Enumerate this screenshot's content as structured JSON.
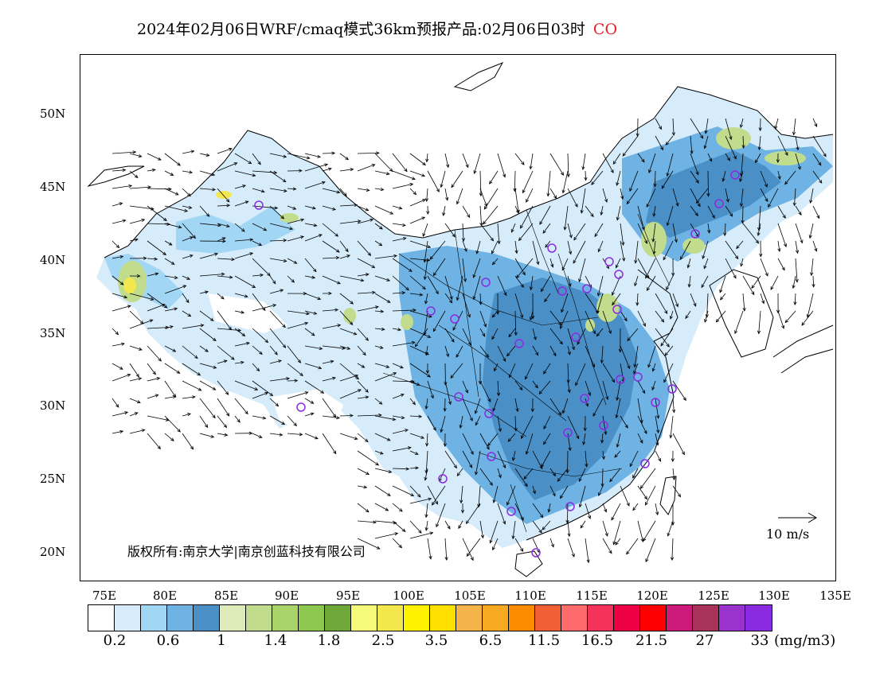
{
  "title": {
    "main": "2024年02月06日WRF/cmaq模式36km预报产品:02月06日03时",
    "species": "CO",
    "species_color": "#e8202a"
  },
  "axes": {
    "lat_labels": [
      "50N",
      "45N",
      "40N",
      "35N",
      "30N",
      "25N",
      "20N"
    ],
    "lon_labels": [
      "75E",
      "80E",
      "85E",
      "90E",
      "95E",
      "100E",
      "105E",
      "110E",
      "115E",
      "120E",
      "125E",
      "130E",
      "135E"
    ]
  },
  "copyright": "版权所有:南京大学|南京创蓝科技有限公司",
  "wind_reference": "10 m/s",
  "colorbar": {
    "colors": [
      "#ffffff",
      "#d6ecfa",
      "#a2d6f5",
      "#6eb3e4",
      "#4a90c7",
      "#dcebb9",
      "#c0dc8c",
      "#a8d46a",
      "#8cc850",
      "#6ea838",
      "#f5fa78",
      "#f2e84e",
      "#fff200",
      "#ffe000",
      "#f5b44a",
      "#f9a822",
      "#ff8c00",
      "#f06034",
      "#ff6a6a",
      "#f5325a",
      "#ee0044",
      "#ff0000",
      "#cc1a7a",
      "#a8325a",
      "#9a32cd",
      "#8a2be2"
    ],
    "labels": [
      "0.2",
      "0.6",
      "1",
      "1.4",
      "1.8",
      "2.5",
      "3.5",
      "6.5",
      "11.5",
      "16.5",
      "21.5",
      "27",
      "33"
    ],
    "unit": "(mg/m3)"
  }
}
